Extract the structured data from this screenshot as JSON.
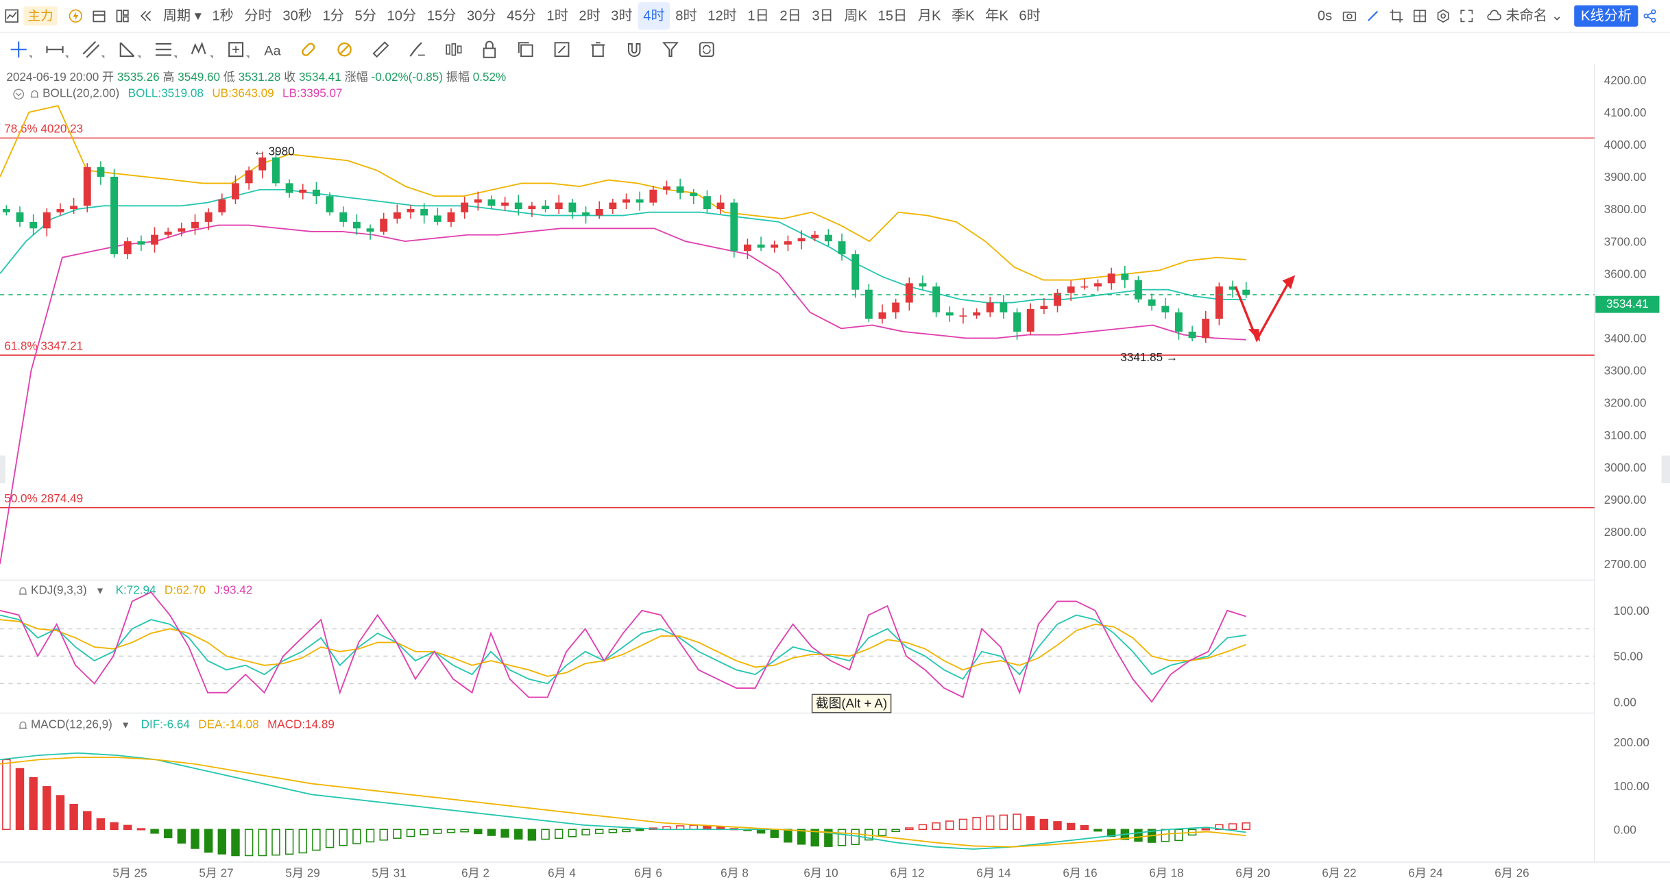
{
  "toolbar": {
    "main_label": "主力",
    "period_label": "周期",
    "periods": [
      "1秒",
      "分时",
      "30秒",
      "1分",
      "5分",
      "10分",
      "15分",
      "30分",
      "45分",
      "1时",
      "2时",
      "3时",
      "4时",
      "8时",
      "12时",
      "1日",
      "2日",
      "3日",
      "周K",
      "15日",
      "月K",
      "季K",
      "年K",
      "6时"
    ],
    "active_period": "4时",
    "countdown": "0s",
    "layout_name": "未命名",
    "analysis_button": "K线分析"
  },
  "info_line": {
    "datetime": "2024-06-19 20:00",
    "open_label": "开",
    "open": "3535.26",
    "high_label": "高",
    "high": "3549.60",
    "low_label": "低",
    "low": "3531.28",
    "close_label": "收",
    "close": "3534.41",
    "change_label": "涨幅",
    "change": "-0.02%(-0.85)",
    "amp_label": "振幅",
    "amp": "0.52%"
  },
  "boll": {
    "name": "BOLL(20,2.00)",
    "mid": "BOLL:3519.08",
    "ub": "UB:3643.09",
    "lb": "LB:3395.07"
  },
  "kdj": {
    "name": "KDJ(9,3,3)",
    "k": "K:72.94",
    "d": "D:62.70",
    "j": "J:93.42"
  },
  "macd": {
    "name": "MACD(12,26,9)",
    "dif": "DIF:-6.64",
    "dea": "DEA:-14.08",
    "macd": "MACD:14.89"
  },
  "tooltip": "截图(Alt + A)",
  "colors": {
    "up": "#e2363b",
    "down": "#17b26a",
    "boll_mid": "#26c6b0",
    "boll_ub": "#f0b400",
    "boll_lb": "#e040b0",
    "accent": "#2b6df0",
    "fib": "#e2363b"
  },
  "chart_data": [
    {
      "type": "candlestick",
      "title": "",
      "y_ticks": [
        "4200.00",
        "4100.00",
        "4000.00",
        "3900.00",
        "3800.00",
        "3700.00",
        "3600.00",
        "3500.00",
        "3400.00",
        "3300.00",
        "3200.00",
        "3100.00",
        "3000.00",
        "2900.00",
        "2800.00",
        "2700.00"
      ],
      "ylim": [
        2650,
        4250
      ],
      "x_ticks": [
        "5月 25",
        "5月 27",
        "5月 29",
        "5月 31",
        "6月 2",
        "6月 4",
        "6月 6",
        "6月 8",
        "6月 10",
        "6月 12",
        "6月 14",
        "6月 16",
        "6月 18",
        "6月 20",
        "6月 22",
        "6月 24",
        "6月 26"
      ],
      "last_price": "3534.41",
      "fib_levels": [
        {
          "label": "78.6% 4020.23",
          "value": 4020.23
        },
        {
          "label": "61.8% 3347.21",
          "value": 3347.21
        },
        {
          "label": "50.0% 2874.49",
          "value": 2874.49
        }
      ],
      "annotations": [
        {
          "text": "← 3980",
          "value": 3980,
          "date": "5月 27"
        },
        {
          "text": "3341.85 →",
          "value": 3341.85,
          "date": "6月 18"
        }
      ],
      "close_series": [
        3790,
        3760,
        3740,
        3790,
        3800,
        3810,
        3930,
        3900,
        3660,
        3700,
        3690,
        3720,
        3730,
        3740,
        3760,
        3790,
        3830,
        3880,
        3920,
        3960,
        3880,
        3850,
        3860,
        3840,
        3790,
        3760,
        3740,
        3730,
        3770,
        3790,
        3800,
        3780,
        3760,
        3790,
        3820,
        3830,
        3810,
        3820,
        3800,
        3810,
        3800,
        3820,
        3790,
        3780,
        3800,
        3820,
        3830,
        3820,
        3860,
        3870,
        3850,
        3840,
        3800,
        3820,
        3670,
        3690,
        3680,
        3690,
        3700,
        3710,
        3720,
        3700,
        3660,
        3550,
        3460,
        3480,
        3510,
        3570,
        3560,
        3480,
        3470,
        3470,
        3480,
        3510,
        3480,
        3420,
        3490,
        3500,
        3540,
        3560,
        3560,
        3570,
        3600,
        3580,
        3520,
        3500,
        3480,
        3420,
        3400,
        3460,
        3560,
        3550,
        3534
      ],
      "boll_mid": [
        3600,
        3700,
        3770,
        3800,
        3810,
        3810,
        3810,
        3810,
        3820,
        3840,
        3860,
        3860,
        3850,
        3840,
        3830,
        3820,
        3810,
        3810,
        3810,
        3800,
        3790,
        3780,
        3780,
        3780,
        3780,
        3790,
        3790,
        3790,
        3780,
        3770,
        3760,
        3720,
        3680,
        3630,
        3590,
        3560,
        3540,
        3520,
        3510,
        3510,
        3520,
        3520,
        3530,
        3540,
        3550,
        3550,
        3530,
        3520,
        3519
      ],
      "boll_ub": [
        3900,
        4100,
        4120,
        3920,
        3910,
        3900,
        3890,
        3880,
        3880,
        3940,
        3970,
        3960,
        3950,
        3920,
        3870,
        3840,
        3840,
        3860,
        3880,
        3880,
        3870,
        3890,
        3880,
        3860,
        3850,
        3790,
        3780,
        3770,
        3790,
        3750,
        3700,
        3790,
        3780,
        3760,
        3700,
        3620,
        3580,
        3580,
        3590,
        3600,
        3610,
        3640,
        3650,
        3643
      ],
      "boll_lb": [
        2700,
        3300,
        3650,
        3670,
        3690,
        3700,
        3730,
        3750,
        3750,
        3740,
        3730,
        3730,
        3720,
        3700,
        3710,
        3720,
        3720,
        3730,
        3740,
        3740,
        3740,
        3740,
        3700,
        3680,
        3660,
        3600,
        3480,
        3430,
        3440,
        3420,
        3410,
        3400,
        3400,
        3410,
        3410,
        3420,
        3430,
        3440,
        3410,
        3400,
        3395
      ],
      "grid": false,
      "legend": "top-left"
    },
    {
      "type": "line",
      "title": "KDJ(9,3,3)",
      "y_ticks": [
        "100.00",
        "50.00",
        "0.00"
      ],
      "ylim": [
        -10,
        110
      ],
      "series": [
        {
          "name": "K",
          "values": [
            95,
            90,
            70,
            80,
            60,
            45,
            55,
            80,
            90,
            85,
            70,
            45,
            35,
            40,
            30,
            45,
            55,
            70,
            40,
            60,
            75,
            65,
            45,
            55,
            40,
            30,
            55,
            35,
            25,
            20,
            40,
            55,
            45,
            60,
            75,
            80,
            70,
            55,
            45,
            35,
            30,
            45,
            60,
            55,
            50,
            45,
            70,
            80,
            60,
            50,
            35,
            25,
            55,
            50,
            30,
            60,
            85,
            95,
            90,
            75,
            55,
            30,
            40,
            45,
            50,
            70,
            72.94
          ]
        },
        {
          "name": "D",
          "values": [
            90,
            88,
            80,
            78,
            70,
            60,
            58,
            65,
            75,
            80,
            75,
            65,
            50,
            45,
            40,
            42,
            48,
            60,
            55,
            58,
            65,
            65,
            55,
            55,
            48,
            40,
            45,
            40,
            35,
            28,
            32,
            42,
            45,
            52,
            62,
            72,
            72,
            65,
            55,
            45,
            38,
            40,
            48,
            52,
            52,
            50,
            58,
            68,
            65,
            58,
            45,
            35,
            42,
            45,
            40,
            48,
            62,
            78,
            85,
            82,
            70,
            50,
            45,
            45,
            48,
            55,
            62.7
          ]
        },
        {
          "name": "J",
          "values": [
            100,
            95,
            50,
            85,
            40,
            20,
            50,
            110,
            120,
            95,
            60,
            10,
            10,
            30,
            10,
            50,
            70,
            90,
            10,
            65,
            95,
            65,
            25,
            55,
            25,
            10,
            75,
            25,
            5,
            5,
            55,
            80,
            45,
            75,
            100,
            95,
            65,
            35,
            25,
            15,
            15,
            55,
            85,
            60,
            45,
            35,
            95,
            105,
            50,
            35,
            15,
            5,
            80,
            60,
            10,
            85,
            110,
            110,
            100,
            60,
            25,
            0,
            30,
            45,
            55,
            100,
            93.42
          ]
        }
      ]
    },
    {
      "type": "bar",
      "title": "MACD(12,26,9)",
      "y_ticks": [
        "200.00",
        "100.00",
        "0.00"
      ],
      "ylim": [
        -70,
        230
      ],
      "series": [
        {
          "name": "DIF",
          "values": [
            160,
            170,
            175,
            170,
            160,
            140,
            120,
            100,
            80,
            70,
            60,
            50,
            40,
            30,
            20,
            10,
            5,
            0,
            0,
            0,
            0,
            -5,
            -15,
            -30,
            -40,
            -45,
            -40,
            -30,
            -20,
            -10,
            0,
            5,
            -6.64
          ]
        },
        {
          "name": "DEA",
          "values": [
            150,
            160,
            165,
            165,
            160,
            150,
            135,
            120,
            105,
            95,
            85,
            75,
            65,
            55,
            45,
            35,
            25,
            15,
            10,
            5,
            0,
            -5,
            -10,
            -20,
            -30,
            -38,
            -40,
            -35,
            -28,
            -20,
            -10,
            -5,
            -14.08
          ]
        },
        {
          "name": "MACD",
          "values": [
            160,
            110,
            60,
            20,
            5,
            -20,
            -50,
            -60,
            -60,
            -55,
            -40,
            -30,
            -20,
            -10,
            -5,
            -15,
            -25,
            -20,
            -10,
            -5,
            5,
            10,
            5,
            -5,
            -30,
            -40,
            -35,
            -10,
            10,
            20,
            30,
            35,
            20,
            10,
            -20,
            -30,
            -25,
            10,
            14.89
          ]
        }
      ]
    }
  ]
}
